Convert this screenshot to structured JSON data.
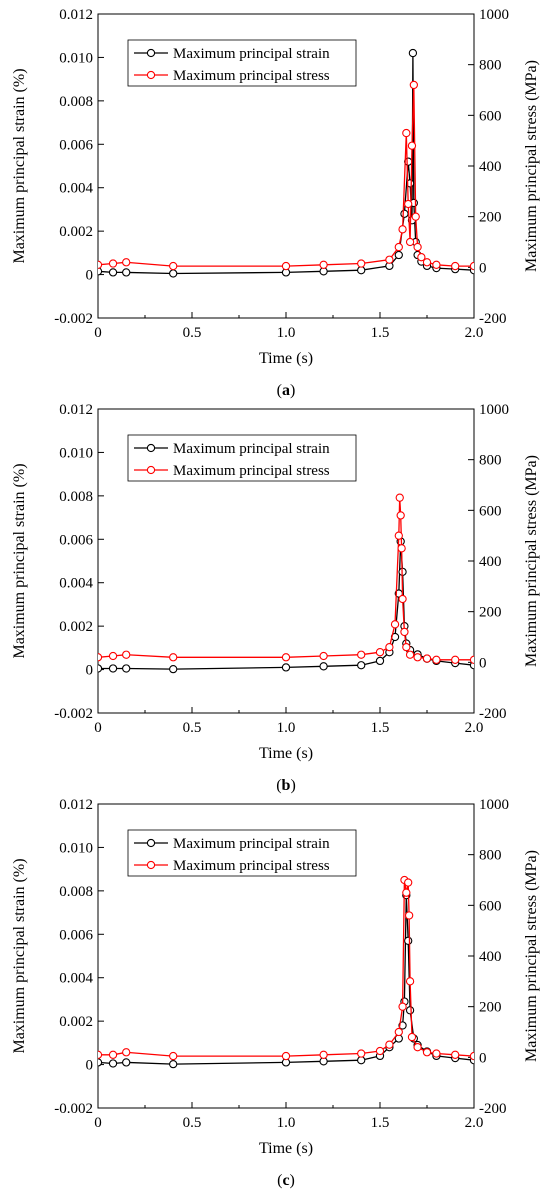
{
  "axes": {
    "xlabel": "Time (s)",
    "ylabel_left": "Maximum principal strain (%)",
    "ylabel_right": "Maximum principal stress (MPa)",
    "x_ticks": [
      "0",
      "0.5",
      "1.0",
      "1.5",
      "2.0"
    ],
    "y_left_ticks": [
      "-0.002",
      "0",
      "0.002",
      "0.004",
      "0.006",
      "0.008",
      "0.010",
      "0.012"
    ],
    "y_right_ticks": [
      "-200",
      "0",
      "200",
      "400",
      "600",
      "800",
      "1000"
    ]
  },
  "legend": {
    "strain": "Maximum principal strain",
    "stress": "Maximum principal stress"
  },
  "colors": {
    "strain": "#000000",
    "stress": "#ff0000"
  },
  "chart_data": [
    {
      "type": "line",
      "caption": {
        "open": "(",
        "letter": "a",
        "close": ")"
      },
      "xlim": [
        0,
        2.0
      ],
      "ylim_left": [
        -0.002,
        0.012
      ],
      "ylim_right": [
        -200,
        1000
      ],
      "series": [
        {
          "name": "Maximum principal strain",
          "axis": "left",
          "x": [
            0,
            0.08,
            0.15,
            0.4,
            1.0,
            1.2,
            1.4,
            1.55,
            1.6,
            1.63,
            1.65,
            1.66,
            1.67,
            1.675,
            1.68,
            1.69,
            1.7,
            1.72,
            1.75,
            1.8,
            1.9,
            2.0
          ],
          "y": [
            0.00015,
            0.0001,
            0.0001,
            5e-05,
            0.0001,
            0.00015,
            0.0002,
            0.0004,
            0.0009,
            0.0028,
            0.0052,
            0.0042,
            0.0025,
            0.0102,
            0.0033,
            0.0015,
            0.0009,
            0.0006,
            0.0004,
            0.0003,
            0.00025,
            0.0002
          ]
        },
        {
          "name": "Maximum principal stress",
          "axis": "right",
          "x": [
            0,
            0.08,
            0.15,
            0.4,
            1.0,
            1.2,
            1.4,
            1.55,
            1.6,
            1.62,
            1.64,
            1.65,
            1.66,
            1.67,
            1.68,
            1.69,
            1.7,
            1.72,
            1.75,
            1.8,
            1.9,
            2.0
          ],
          "y": [
            10,
            15,
            20,
            5,
            5,
            10,
            15,
            30,
            80,
            150,
            530,
            250,
            100,
            480,
            720,
            200,
            80,
            40,
            20,
            10,
            5,
            5
          ]
        }
      ]
    },
    {
      "type": "line",
      "caption": {
        "open": "(",
        "letter": "b",
        "close": ")"
      },
      "xlim": [
        0,
        2.0
      ],
      "ylim_left": [
        -0.002,
        0.012
      ],
      "ylim_right": [
        -200,
        1000
      ],
      "series": [
        {
          "name": "Maximum principal strain",
          "axis": "left",
          "x": [
            0,
            0.08,
            0.15,
            0.4,
            1.0,
            1.2,
            1.4,
            1.5,
            1.55,
            1.58,
            1.6,
            1.61,
            1.62,
            1.63,
            1.64,
            1.66,
            1.7,
            1.75,
            1.8,
            1.9,
            2.0
          ],
          "y": [
            5e-05,
            5e-05,
            5e-05,
            2e-05,
            0.0001,
            0.00015,
            0.0002,
            0.0004,
            0.0008,
            0.0015,
            0.0035,
            0.0059,
            0.0045,
            0.002,
            0.0012,
            0.0009,
            0.0007,
            0.0005,
            0.0004,
            0.0003,
            0.0002
          ]
        },
        {
          "name": "Maximum principal stress",
          "axis": "right",
          "x": [
            0,
            0.08,
            0.15,
            0.4,
            1.0,
            1.2,
            1.4,
            1.5,
            1.55,
            1.58,
            1.6,
            1.605,
            1.61,
            1.615,
            1.62,
            1.63,
            1.64,
            1.66,
            1.7,
            1.75,
            1.8,
            1.9,
            2.0
          ],
          "y": [
            20,
            25,
            30,
            20,
            20,
            25,
            30,
            40,
            60,
            150,
            500,
            650,
            580,
            450,
            250,
            120,
            60,
            30,
            20,
            15,
            10,
            10,
            10
          ]
        }
      ]
    },
    {
      "type": "line",
      "caption": {
        "open": "(",
        "letter": "c",
        "close": ")"
      },
      "xlim": [
        0,
        2.0
      ],
      "ylim_left": [
        -0.002,
        0.012
      ],
      "ylim_right": [
        -200,
        1000
      ],
      "series": [
        {
          "name": "Maximum principal strain",
          "axis": "left",
          "x": [
            0,
            0.08,
            0.15,
            0.4,
            1.0,
            1.2,
            1.4,
            1.5,
            1.55,
            1.6,
            1.62,
            1.63,
            1.64,
            1.65,
            1.66,
            1.68,
            1.7,
            1.75,
            1.8,
            1.9,
            2.0
          ],
          "y": [
            0.0001,
            5e-05,
            0.0001,
            2e-05,
            0.0001,
            0.00015,
            0.0002,
            0.0004,
            0.0008,
            0.0012,
            0.0018,
            0.0029,
            0.0078,
            0.0057,
            0.0025,
            0.0012,
            0.0009,
            0.0006,
            0.0004,
            0.0003,
            0.0002
          ]
        },
        {
          "name": "Maximum principal stress",
          "axis": "right",
          "x": [
            0,
            0.08,
            0.15,
            0.4,
            1.0,
            1.2,
            1.4,
            1.5,
            1.55,
            1.6,
            1.62,
            1.63,
            1.64,
            1.65,
            1.655,
            1.66,
            1.67,
            1.7,
            1.75,
            1.8,
            1.9,
            2.0
          ],
          "y": [
            10,
            10,
            20,
            5,
            5,
            10,
            15,
            25,
            50,
            100,
            200,
            700,
            650,
            690,
            560,
            300,
            80,
            40,
            20,
            15,
            10,
            5
          ]
        }
      ]
    }
  ]
}
